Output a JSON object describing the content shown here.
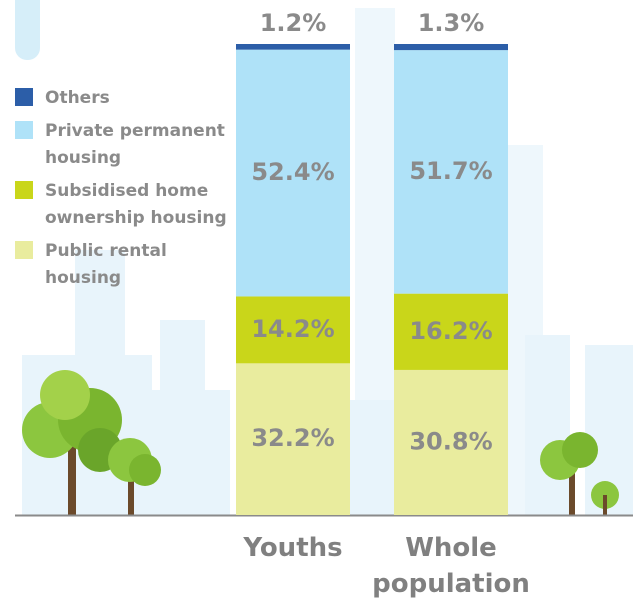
{
  "chart_data": {
    "type": "stacked_bar",
    "categories": [
      "Youths",
      "Whole population"
    ],
    "series": [
      {
        "name": "Others",
        "color": "#2c5ea8",
        "values": [
          1.2,
          1.3
        ],
        "value_labels": [
          "1.2%",
          "1.3%"
        ]
      },
      {
        "name": "Private permanent housing",
        "color": "#afe2f8",
        "values": [
          52.4,
          51.7
        ],
        "value_labels": [
          "52.4%",
          "51.7%"
        ]
      },
      {
        "name": "Subsidised home ownership housing",
        "color": "#c9d61a",
        "values": [
          14.2,
          16.2
        ],
        "value_labels": [
          "14.2%",
          "16.2%"
        ]
      },
      {
        "name": "Public rental housing",
        "color": "#e9ec9e",
        "values": [
          32.2,
          30.8
        ],
        "value_labels": [
          "32.2%",
          "30.8%"
        ]
      }
    ],
    "ylim": [
      0,
      100
    ]
  }
}
